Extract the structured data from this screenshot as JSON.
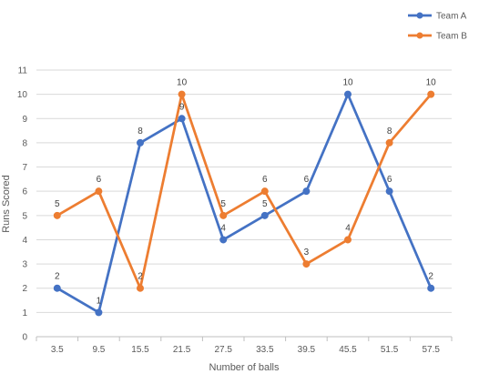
{
  "chart_data": {
    "type": "line",
    "xlabel": "Number of balls",
    "ylabel": "Runs Scored",
    "categories": [
      "3.5",
      "9.5",
      "15.5",
      "21.5",
      "27.5",
      "33.5",
      "39.5",
      "45.5",
      "51.5",
      "57.5"
    ],
    "ylim": [
      0,
      11
    ],
    "yticks": [
      0,
      1,
      2,
      3,
      4,
      5,
      6,
      7,
      8,
      9,
      10,
      11
    ],
    "grid": true,
    "legend_position": "top-right",
    "series": [
      {
        "name": "Team A",
        "color": "#4472C4",
        "values": [
          2,
          1,
          8,
          9,
          4,
          5,
          6,
          10,
          6,
          2
        ]
      },
      {
        "name": "Team B",
        "color": "#ED7D31",
        "values": [
          5,
          6,
          2,
          10,
          5,
          6,
          3,
          4,
          8,
          10
        ]
      }
    ]
  }
}
